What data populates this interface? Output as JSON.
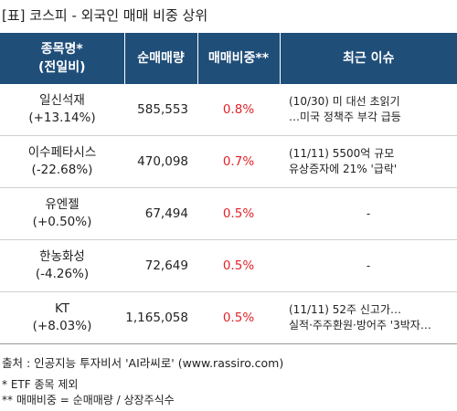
{
  "title": "[표] 코스피 - 외국인 매매 비중 상위",
  "table": {
    "headers": {
      "name_line1": "종목명*",
      "name_line2": "(전일비)",
      "volume": "순매매량",
      "ratio": "매매비중**",
      "news": "최근 이슈"
    },
    "rows": [
      {
        "name": "일신석재",
        "change": "(+13.14%)",
        "volume": "585,553",
        "ratio": "0.8%",
        "news1": "(10/30) 미 대선 초읽기",
        "news2": "…미국 정책주 부각 급등"
      },
      {
        "name": "이수페타시스",
        "change": "(-22.68%)",
        "volume": "470,098",
        "ratio": "0.7%",
        "news1": "(11/11) 5500억 규모",
        "news2": "유상증자에 21% '급락'"
      },
      {
        "name": "유엔젤",
        "change": "(+0.50%)",
        "volume": "67,494",
        "ratio": "0.5%",
        "news1": "-",
        "news2": ""
      },
      {
        "name": "한농화성",
        "change": "(-4.26%)",
        "volume": "72,649",
        "ratio": "0.5%",
        "news1": "-",
        "news2": ""
      },
      {
        "name": "KT",
        "change": "(+8.03%)",
        "volume": "1,165,058",
        "ratio": "0.5%",
        "news1": "(11/11) 52주 신고가…",
        "news2": "실적·주주환원·방어주 '3박자…"
      }
    ]
  },
  "footer": {
    "source": "출처 : 인공지능 투자비서 'AI라씨로' (www.rassiro.com)",
    "note1": "* ETF 종목 제외",
    "note2": "** 매매비중 = 순매매량 / 상장주식수"
  },
  "colors": {
    "header_bg": "#1f4e79",
    "ratio_text": "#e0242a"
  }
}
